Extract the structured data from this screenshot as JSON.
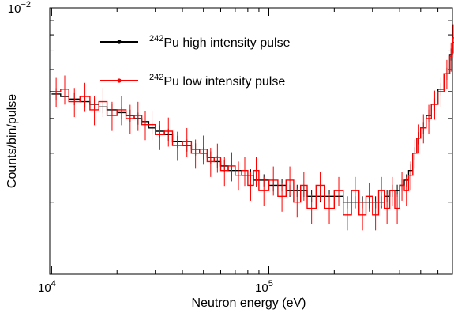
{
  "chart_data": {
    "type": "line",
    "xlabel": "Neutron energy (eV)",
    "ylabel": "Counts/bin/pulse",
    "x_scale": "log",
    "y_scale": "log",
    "xlim": [
      9800,
      700000
    ],
    "ylim": [
      0.0011,
      0.01
    ],
    "x_tick_labels": [
      {
        "value": 10000,
        "base": "10",
        "exp": "4"
      },
      {
        "value": 100000,
        "base": "10",
        "exp": "5"
      }
    ],
    "y_tick_labels": [
      {
        "value": 0.01,
        "base": "10",
        "exp": "−2"
      }
    ],
    "grid": false,
    "legend_position": "top-center",
    "series": [
      {
        "name": "Pu high intensity pulse",
        "name_sup": "242",
        "color": "#000000",
        "x": [
          10000,
          11000,
          12000,
          13500,
          15000,
          16500,
          18000,
          20000,
          22000,
          24000,
          26000,
          28000,
          30000,
          33000,
          36000,
          40000,
          44000,
          48000,
          52000,
          56000,
          60000,
          65000,
          70000,
          75000,
          80000,
          85000,
          90000,
          100000,
          110000,
          120000,
          130000,
          140000,
          150000,
          165000,
          180000,
          200000,
          220000,
          240000,
          260000,
          280000,
          300000,
          320000,
          340000,
          360000,
          380000,
          400000,
          420000,
          440000,
          460000,
          480000,
          500000,
          530000,
          560000,
          600000,
          640000,
          680000,
          700000
        ],
        "values": [
          0.0049,
          0.0048,
          0.0047,
          0.0046,
          0.0045,
          0.0044,
          0.0043,
          0.0042,
          0.0041,
          0.004,
          0.0039,
          0.0037,
          0.0036,
          0.0035,
          0.0033,
          0.0032,
          0.0031,
          0.003,
          0.0029,
          0.0028,
          0.0027,
          0.0026,
          0.0026,
          0.0025,
          0.0025,
          0.0024,
          0.0024,
          0.0023,
          0.0023,
          0.0022,
          0.0022,
          0.0022,
          0.0021,
          0.0021,
          0.0021,
          0.0021,
          0.002,
          0.002,
          0.002,
          0.002,
          0.002,
          0.002,
          0.0021,
          0.0022,
          0.0022,
          0.0023,
          0.0024,
          0.0026,
          0.003,
          0.0034,
          0.0037,
          0.0041,
          0.0045,
          0.0051,
          0.0058,
          0.0068,
          0.0075
        ]
      },
      {
        "name": "Pu low intensity pulse",
        "name_sup": "242",
        "color": "#ff0000",
        "x": [
          10000,
          11000,
          12000,
          13500,
          15000,
          16500,
          18000,
          20000,
          22000,
          24000,
          26000,
          28000,
          30000,
          33000,
          36000,
          40000,
          44000,
          48000,
          52000,
          56000,
          60000,
          65000,
          70000,
          75000,
          80000,
          85000,
          90000,
          100000,
          110000,
          120000,
          130000,
          140000,
          150000,
          165000,
          180000,
          200000,
          220000,
          240000,
          260000,
          280000,
          300000,
          320000,
          340000,
          360000,
          380000,
          400000,
          420000,
          440000,
          460000,
          480000,
          500000,
          530000,
          560000,
          600000,
          640000,
          680000,
          700000
        ],
        "values": [
          0.005,
          0.0051,
          0.0046,
          0.0048,
          0.0043,
          0.0046,
          0.0041,
          0.0043,
          0.004,
          0.0041,
          0.0038,
          0.0038,
          0.0035,
          0.0036,
          0.0032,
          0.0033,
          0.003,
          0.0031,
          0.0028,
          0.0029,
          0.0026,
          0.0027,
          0.0025,
          0.0026,
          0.0023,
          0.0026,
          0.0022,
          0.0024,
          0.0021,
          0.0024,
          0.002,
          0.0023,
          0.0019,
          0.0023,
          0.0019,
          0.0022,
          0.0018,
          0.0022,
          0.0018,
          0.0021,
          0.0018,
          0.0022,
          0.0019,
          0.0022,
          0.0019,
          0.0023,
          0.0022,
          0.0025,
          0.003,
          0.0034,
          0.0037,
          0.004,
          0.0045,
          0.005,
          0.0058,
          0.0067,
          0.0078
        ]
      }
    ]
  }
}
